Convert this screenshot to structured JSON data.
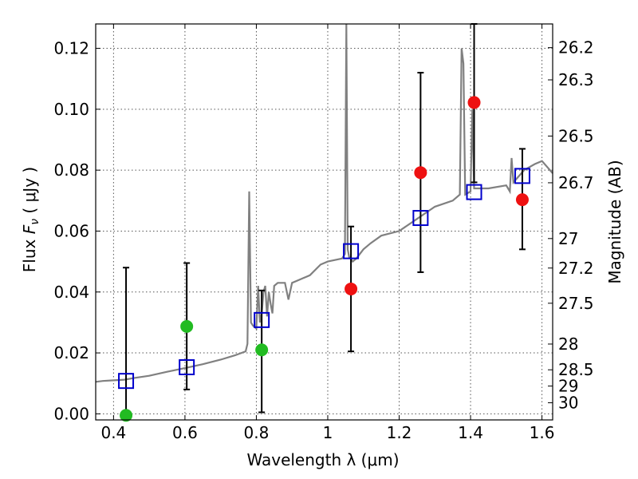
{
  "chart_data": {
    "type": "scatter",
    "xlabel": "Wavelength  λ (μm)",
    "ylabel": "Flux  F_ν  ( μJy )",
    "ylabel_parts": {
      "pre": "Flux ",
      "sym": "F",
      "sub": "ν",
      "post": "  ( μJy )"
    },
    "y2label": "Magnitude (AB)",
    "xlim": [
      0.35,
      1.63
    ],
    "ylim": [
      -0.002,
      0.128
    ],
    "grid": true,
    "x_ticks": [
      0.4,
      0.6,
      0.8,
      1.0,
      1.2,
      1.4,
      1.6
    ],
    "x_tick_labels": [
      "0.4",
      "0.6",
      "0.8",
      "1",
      "1.2",
      "1.4",
      "1.6"
    ],
    "y_ticks": [
      0.0,
      0.02,
      0.04,
      0.06,
      0.08,
      0.1,
      0.12
    ],
    "y_tick_labels": [
      "0.00",
      "0.02",
      "0.04",
      "0.06",
      "0.08",
      "0.10",
      "0.12"
    ],
    "mag_ticks": [
      "26.2",
      "26.3",
      "26.5",
      "26.7",
      "27",
      "27.2",
      "27.5",
      "28",
      "28.5",
      "29",
      "30"
    ],
    "colors": {
      "spectrum": "#808080",
      "model": "#0000cc",
      "green": "#22bb22",
      "red": "#ee1111",
      "errorbar": "#000000",
      "grid": "#555555"
    },
    "spectrum": [
      [
        0.35,
        0.0105
      ],
      [
        0.37,
        0.0108
      ],
      [
        0.4,
        0.011
      ],
      [
        0.43,
        0.0112
      ],
      [
        0.46,
        0.0118
      ],
      [
        0.5,
        0.0125
      ],
      [
        0.55,
        0.0138
      ],
      [
        0.6,
        0.015
      ],
      [
        0.65,
        0.0163
      ],
      [
        0.7,
        0.0178
      ],
      [
        0.74,
        0.0192
      ],
      [
        0.77,
        0.0205
      ],
      [
        0.775,
        0.023
      ],
      [
        0.78,
        0.073
      ],
      [
        0.785,
        0.03
      ],
      [
        0.79,
        0.029
      ],
      [
        0.8,
        0.028
      ],
      [
        0.805,
        0.042
      ],
      [
        0.81,
        0.03
      ],
      [
        0.815,
        0.033
      ],
      [
        0.82,
        0.04
      ],
      [
        0.825,
        0.042
      ],
      [
        0.83,
        0.032
      ],
      [
        0.835,
        0.04
      ],
      [
        0.84,
        0.036
      ],
      [
        0.845,
        0.033
      ],
      [
        0.85,
        0.042
      ],
      [
        0.86,
        0.043
      ],
      [
        0.88,
        0.043
      ],
      [
        0.89,
        0.0375
      ],
      [
        0.9,
        0.043
      ],
      [
        0.92,
        0.044
      ],
      [
        0.95,
        0.0455
      ],
      [
        0.98,
        0.049
      ],
      [
        1.0,
        0.05
      ],
      [
        1.02,
        0.0505
      ],
      [
        1.04,
        0.051
      ],
      [
        1.048,
        0.0525
      ],
      [
        1.052,
        0.13
      ],
      [
        1.056,
        0.054
      ],
      [
        1.06,
        0.0515
      ],
      [
        1.07,
        0.05
      ],
      [
        1.08,
        0.051
      ],
      [
        1.1,
        0.054
      ],
      [
        1.12,
        0.056
      ],
      [
        1.15,
        0.0585
      ],
      [
        1.2,
        0.06
      ],
      [
        1.25,
        0.064
      ],
      [
        1.3,
        0.068
      ],
      [
        1.35,
        0.07
      ],
      [
        1.37,
        0.072
      ],
      [
        1.375,
        0.12
      ],
      [
        1.38,
        0.115
      ],
      [
        1.385,
        0.072
      ],
      [
        1.4,
        0.073
      ],
      [
        1.405,
        0.1
      ],
      [
        1.41,
        0.074
      ],
      [
        1.42,
        0.074
      ],
      [
        1.45,
        0.074
      ],
      [
        1.5,
        0.075
      ],
      [
        1.51,
        0.073
      ],
      [
        1.515,
        0.084
      ],
      [
        1.52,
        0.076
      ],
      [
        1.55,
        0.08
      ],
      [
        1.58,
        0.082
      ],
      [
        1.6,
        0.083
      ],
      [
        1.63,
        0.079
      ]
    ],
    "model_points": [
      {
        "x": 0.435,
        "y": 0.0108
      },
      {
        "x": 0.605,
        "y": 0.0153
      },
      {
        "x": 0.815,
        "y": 0.0308
      },
      {
        "x": 1.065,
        "y": 0.0534
      },
      {
        "x": 1.26,
        "y": 0.0643
      },
      {
        "x": 1.41,
        "y": 0.0728
      },
      {
        "x": 1.545,
        "y": 0.0781
      }
    ],
    "measured_points": [
      {
        "x": 0.435,
        "y": -0.0005,
        "color": "green",
        "yerr_low": 0.0,
        "yerr_high": 0.048,
        "err_from": 0.0
      },
      {
        "x": 0.605,
        "y": 0.0287,
        "color": "green",
        "yerr_low": 0.008,
        "yerr_high": 0.0495,
        "err_from": 0.0
      },
      {
        "x": 0.815,
        "y": 0.021,
        "color": "green",
        "yerr_low": 0.0005,
        "yerr_high": 0.0405,
        "err_from": 0.0
      },
      {
        "x": 1.065,
        "y": 0.041,
        "color": "red",
        "yerr_low": 0.0205,
        "yerr_high": 0.0615,
        "err_from": 0.0
      },
      {
        "x": 1.26,
        "y": 0.0792,
        "color": "red",
        "yerr_low": 0.0465,
        "yerr_high": 0.112,
        "err_from": 0.0
      },
      {
        "x": 1.41,
        "y": 0.1022,
        "color": "red",
        "yerr_low": 0.076,
        "yerr_high": 0.1285,
        "err_from": 0.0
      },
      {
        "x": 1.545,
        "y": 0.0703,
        "color": "red",
        "yerr_low": 0.054,
        "yerr_high": 0.087,
        "err_from": 0.0
      }
    ]
  }
}
